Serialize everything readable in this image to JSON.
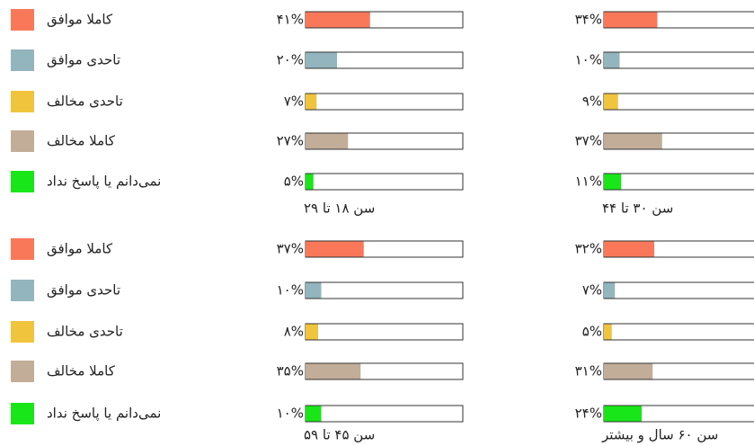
{
  "chart_data": [
    {
      "type": "bar",
      "orientation": "horizontal",
      "title": "سن ۱۸ تا ۲۹",
      "categories": [
        "کاملا موافق",
        "تاحدی موافق",
        "تاحدی مخالف",
        "کاملا مخالف",
        "نمی‌دانم یا پاسخ نداد"
      ],
      "values": [
        41,
        20,
        7,
        27,
        5
      ],
      "value_labels": [
        "۴۱%",
        "۲۰%",
        "۷%",
        "۲۷%",
        "۵%"
      ],
      "colors": [
        "#f9785a",
        "#93b5bd",
        "#f0c43c",
        "#c2ad99",
        "#19e619"
      ],
      "xlim": [
        0,
        100
      ]
    },
    {
      "type": "bar",
      "orientation": "horizontal",
      "title": "سن ۳۰ تا ۴۴",
      "categories": [
        "کاملا موافق",
        "تاحدی موافق",
        "تاحدی مخالف",
        "کاملا مخالف",
        "نمی‌دانم یا پاسخ نداد"
      ],
      "values": [
        34,
        10,
        9,
        37,
        11
      ],
      "value_labels": [
        "۳۴%",
        "۱۰%",
        "۹%",
        "۳۷%",
        "۱۱%"
      ],
      "colors": [
        "#f9785a",
        "#93b5bd",
        "#f0c43c",
        "#c2ad99",
        "#19e619"
      ],
      "xlim": [
        0,
        100
      ]
    },
    {
      "type": "bar",
      "orientation": "horizontal",
      "title": "سن ۴۵ تا ۵۹",
      "categories": [
        "کاملا موافق",
        "تاحدی موافق",
        "تاحدی مخالف",
        "کاملا مخالف",
        "نمی‌دانم یا پاسخ نداد"
      ],
      "values": [
        37,
        10,
        8,
        35,
        10
      ],
      "value_labels": [
        "۳۷%",
        "۱۰%",
        "۸%",
        "۳۵%",
        "۱۰%"
      ],
      "colors": [
        "#f9785a",
        "#93b5bd",
        "#f0c43c",
        "#c2ad99",
        "#19e619"
      ],
      "xlim": [
        0,
        100
      ]
    },
    {
      "type": "bar",
      "orientation": "horizontal",
      "title": "سن ۶۰ سال و بیشتر",
      "categories": [
        "کاملا موافق",
        "تاحدی موافق",
        "تاحدی مخالف",
        "کاملا مخالف",
        "نمی‌دانم یا پاسخ نداد"
      ],
      "values": [
        32,
        7,
        5,
        31,
        24
      ],
      "value_labels": [
        "۳۲%",
        "۷%",
        "۵%",
        "۳۱%",
        "۲۴%"
      ],
      "colors": [
        "#f9785a",
        "#93b5bd",
        "#f0c43c",
        "#c2ad99",
        "#19e619"
      ],
      "xlim": [
        0,
        100
      ]
    }
  ]
}
